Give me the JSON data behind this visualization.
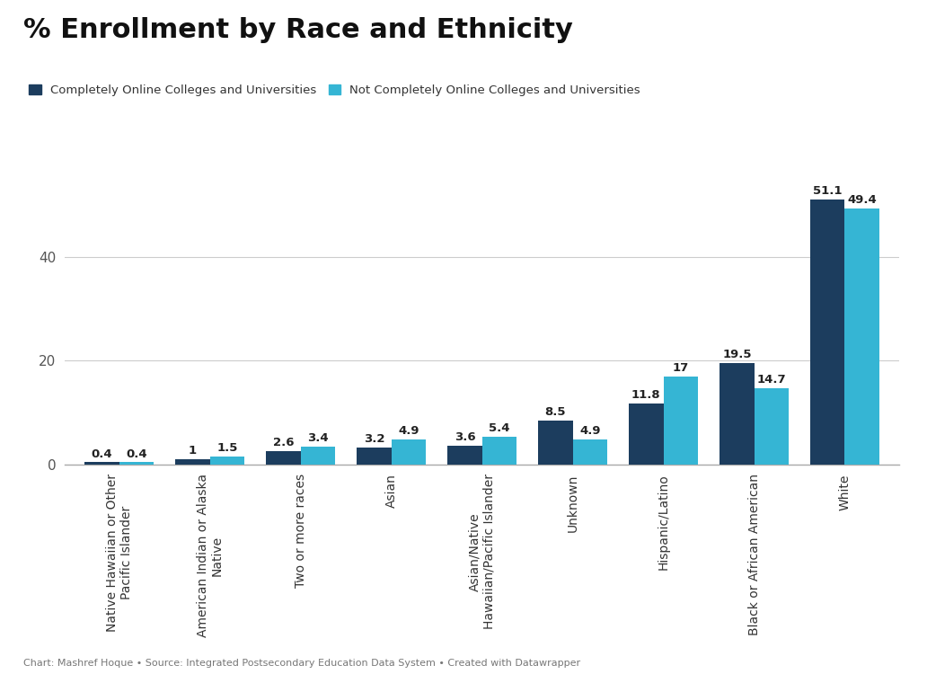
{
  "title": "% Enrollment by Race and Ethnicity",
  "categories": [
    "Native Hawaiian or Other\nPacific Islander",
    "American Indian or Alaska\nNative",
    "Two or more races",
    "Asian",
    "Asian/Native\nHawaiian/Pacific Islander",
    "Unknown",
    "Hispanic/Latino",
    "Black or African American",
    "White"
  ],
  "series1_label": "Completely Online Colleges and Universities",
  "series2_label": "Not Completely Online Colleges and Universities",
  "series1_values": [
    0.4,
    1.0,
    2.6,
    3.2,
    3.6,
    8.5,
    11.8,
    19.5,
    51.1
  ],
  "series2_values": [
    0.4,
    1.5,
    3.4,
    4.9,
    5.4,
    4.9,
    17.0,
    14.7,
    49.4
  ],
  "series1_labels": [
    "0.4",
    "1",
    "2.6",
    "3.2",
    "3.6",
    "8.5",
    "11.8",
    "19.5",
    "51.1"
  ],
  "series2_labels": [
    "0.4",
    "1.5",
    "3.4",
    "4.9",
    "5.4",
    "4.9",
    "17",
    "14.7",
    "49.4"
  ],
  "series1_color": "#1c3d5e",
  "series2_color": "#35b5d4",
  "background_color": "#ffffff",
  "grid_color": "#cccccc",
  "yticks": [
    0,
    20,
    40
  ],
  "ylim": [
    0,
    58
  ],
  "footer": "Chart: Mashref Hoque • Source: Integrated Postsecondary Education Data System • Created with Datawrapper",
  "title_fontsize": 22,
  "label_fontsize": 10,
  "tick_fontsize": 11,
  "bar_width": 0.38,
  "value_fontsize": 9.5
}
